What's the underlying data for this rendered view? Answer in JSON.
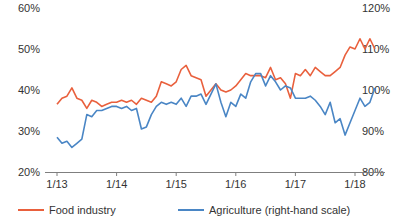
{
  "chart_data": {
    "type": "line",
    "x": [
      "1/13",
      null,
      null,
      null,
      null,
      null,
      null,
      null,
      null,
      null,
      null,
      null,
      "1/14",
      null,
      null,
      null,
      null,
      null,
      null,
      null,
      null,
      null,
      null,
      null,
      "1/15",
      null,
      null,
      null,
      null,
      null,
      null,
      null,
      null,
      null,
      null,
      null,
      "1/16",
      null,
      null,
      null,
      null,
      null,
      null,
      null,
      null,
      null,
      null,
      null,
      "1/17",
      null,
      null,
      null,
      null,
      null,
      null,
      null,
      null,
      null,
      null,
      null,
      "1/18",
      null,
      null,
      null,
      null
    ],
    "series": [
      {
        "name": "Food industry",
        "color": "#e9603d",
        "values": [
          36.5,
          38,
          38.5,
          40.5,
          38,
          37.5,
          35.5,
          37.5,
          37,
          36,
          36.5,
          37,
          37,
          37.5,
          37,
          37.5,
          36.5,
          38,
          37.5,
          37,
          38.5,
          42,
          41.5,
          41,
          42,
          45,
          46,
          43.5,
          43,
          42.5,
          38.5,
          40,
          41.5,
          40,
          39.5,
          40,
          41,
          42.5,
          44,
          43.5,
          43.5,
          43.5,
          43,
          45.5,
          42.5,
          43,
          41.5,
          38,
          44,
          43.5,
          45,
          43.5,
          45.5,
          44.5,
          43.5,
          43.5,
          44.5,
          45.5,
          48.5,
          50.5,
          50,
          52.5,
          50,
          52.5,
          50
        ]
      },
      {
        "name": "Agriculture (right-hand scale)",
        "color": "#4a86c5",
        "axis": "y2",
        "values": [
          88.5,
          87,
          87.5,
          86,
          87,
          88,
          94,
          93.5,
          95,
          95,
          95.5,
          96,
          96,
          95.5,
          96,
          95,
          95.5,
          90.5,
          91,
          94,
          96,
          97,
          96.5,
          97,
          96.5,
          98,
          96,
          98.5,
          98.5,
          99,
          96.5,
          99,
          101.5,
          97,
          93.5,
          97,
          96,
          99,
          98,
          102,
          104,
          104,
          101,
          103.5,
          102,
          100,
          101,
          100.5,
          98,
          98,
          98,
          98.5,
          97.5,
          96,
          94,
          97,
          92,
          93,
          89,
          92,
          95,
          98,
          96,
          97,
          100.5
        ]
      }
    ],
    "ylim": [
      20,
      60
    ],
    "yticks": [
      {
        "value": 20,
        "label": "20%"
      },
      {
        "value": 30,
        "label": "30%"
      },
      {
        "value": 40,
        "label": "40%"
      },
      {
        "value": 50,
        "label": "50%"
      },
      {
        "value": 60,
        "label": "60%"
      }
    ],
    "y2lim": [
      80,
      120
    ],
    "y2ticks": [
      {
        "value": 80,
        "label": "80%"
      },
      {
        "value": 90,
        "label": "90%"
      },
      {
        "value": 100,
        "label": "100%"
      },
      {
        "value": 110,
        "label": "110%"
      },
      {
        "value": 120,
        "label": "120%"
      }
    ],
    "grid": false,
    "legend": "bottom"
  }
}
